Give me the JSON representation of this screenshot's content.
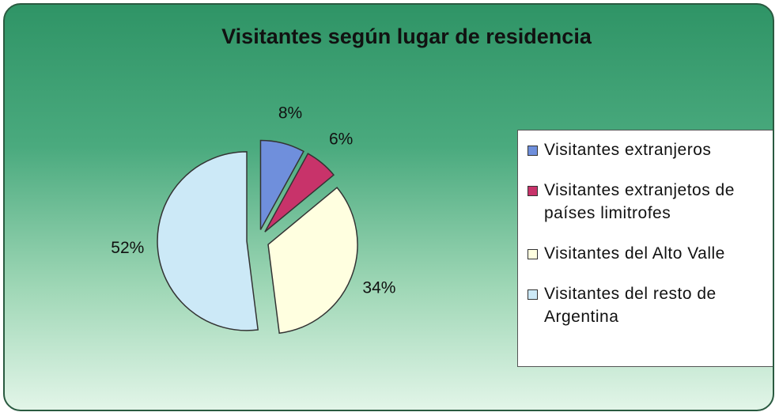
{
  "chart_data": {
    "type": "pie",
    "title": "Visitantes según lugar de residencia",
    "categories": [
      "Visitantes extranjeros",
      "Visitantes extranjetos de países limitrofes",
      "Visitantes del Alto Valle",
      "Visitantes del resto de Argentina"
    ],
    "values": [
      8,
      6,
      34,
      52
    ],
    "value_labels": [
      "8%",
      "6%",
      "34%",
      "52%"
    ],
    "colors": [
      "#6f8fdc",
      "#c8336a",
      "#ffffe0",
      "#cce9f7"
    ],
    "legend": "right"
  }
}
